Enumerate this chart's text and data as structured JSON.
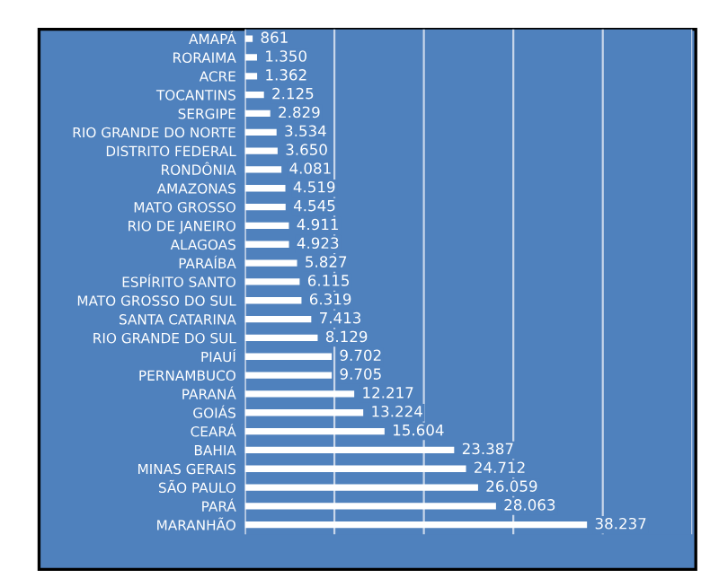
{
  "chart_data": {
    "type": "bar",
    "orientation": "horizontal",
    "categories": [
      "AMAPÁ",
      "RORAIMA",
      "ACRE",
      "TOCANTINS",
      "SERGIPE",
      "RIO GRANDE DO NORTE",
      "DISTRITO FEDERAL",
      "RONDÔNIA",
      "AMAZONAS",
      "MATO GROSSO",
      "RIO DE JANEIRO",
      "ALAGOAS",
      "PARAÍBA",
      "ESPÍRITO SANTO",
      "MATO GROSSO DO SUL",
      "SANTA CATARINA",
      "RIO GRANDE DO SUL",
      "PIAUÍ",
      "PERNAMBUCO",
      "PARANÁ",
      "GOIÁS",
      "CEARÁ",
      "BAHIA",
      "MINAS GERAIS",
      "SÃO PAULO",
      "PARÁ",
      "MARANHÃO"
    ],
    "values": [
      861,
      1350,
      1362,
      2125,
      2829,
      3534,
      3650,
      4081,
      4519,
      4545,
      4911,
      4923,
      5827,
      6115,
      6319,
      7413,
      8129,
      9702,
      9705,
      12217,
      13224,
      15604,
      23387,
      24712,
      26059,
      28063,
      38237
    ],
    "value_labels": [
      "861",
      "1.350",
      "1.362",
      "2.125",
      "2.829",
      "3.534",
      "3.650",
      "4.081",
      "4.519",
      "4.545",
      "4.911",
      "4.923",
      "5.827",
      "6.115",
      "6.319",
      "7.413",
      "8.129",
      "9.702",
      "9.705",
      "12.217",
      "13.224",
      "15.604",
      "23.387",
      "24.712",
      "26.059",
      "28.063",
      "38.237"
    ],
    "color": "#ffffff",
    "xlim": [
      0,
      50000
    ],
    "xticks": [
      {
        "value": 0,
        "label": null
      },
      {
        "value": 10000,
        "label": null
      },
      {
        "value": 20000,
        "label": null
      },
      {
        "value": 30000,
        "label": null
      },
      {
        "value": 40000,
        "label": null
      },
      {
        "value": 50000,
        "label": null
      }
    ],
    "grid": "x",
    "legend": false
  }
}
